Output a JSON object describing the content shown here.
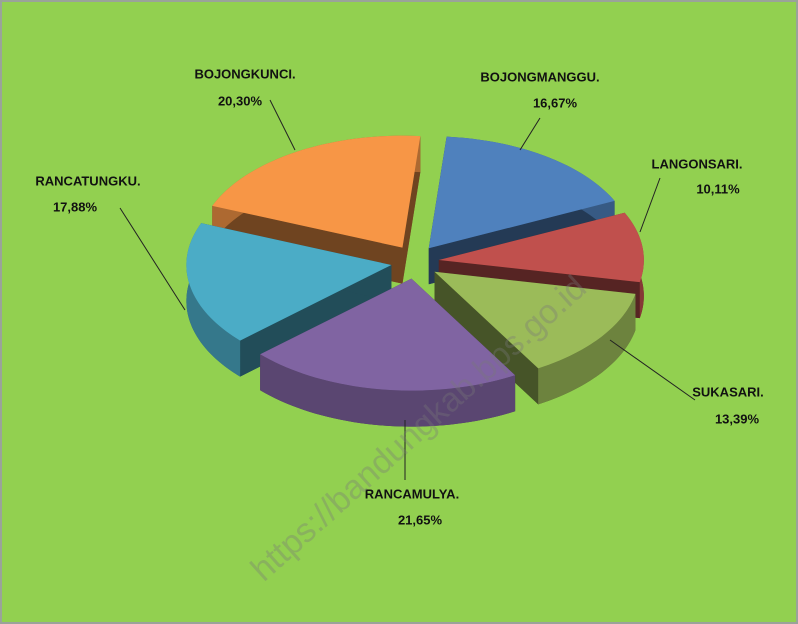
{
  "chart_data": {
    "type": "pie",
    "categories": [
      "BOJONGMANGGU.",
      "LANGONSARI.",
      "SUKASARI.",
      "RANCAMULYA.",
      "RANCATUNGKU.",
      "BOJONGKUNCI."
    ],
    "values": [
      16.67,
      10.11,
      13.39,
      21.65,
      17.88,
      20.3
    ],
    "value_labels": [
      "16,67%",
      "10,11%",
      "13,39%",
      "21,65%",
      "17,88%",
      "20,30%"
    ],
    "colors": [
      "#4f81bd",
      "#c0504d",
      "#9bbb59",
      "#8064a2",
      "#4bacc6",
      "#f79646"
    ],
    "watermark": "https://bandungkab.bps.go.id"
  }
}
